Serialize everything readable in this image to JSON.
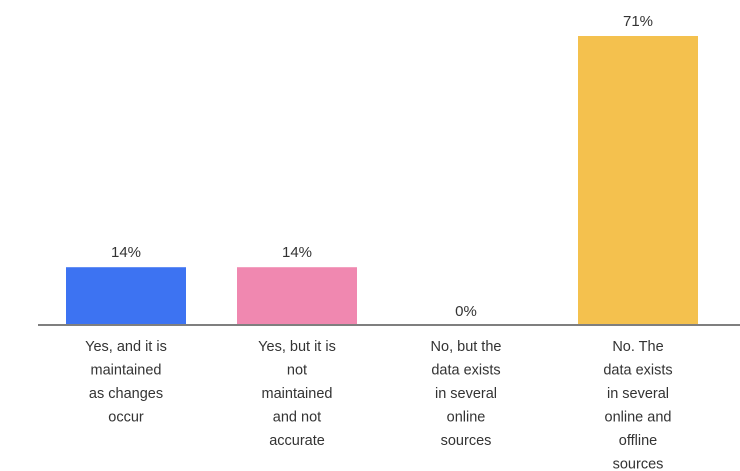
{
  "chart_data": {
    "type": "bar",
    "categories": [
      [
        "Yes, and it is",
        "maintained",
        "as changes",
        "occur"
      ],
      [
        "Yes, but it is",
        "not",
        "maintained",
        "and not",
        "accurate"
      ],
      [
        "No, but the",
        "data exists",
        "in several",
        "online",
        "sources"
      ],
      [
        "No. The",
        "data exists",
        "in several",
        "online and",
        "offline",
        "sources"
      ]
    ],
    "values": [
      14,
      14,
      0,
      71
    ],
    "value_labels": [
      "14%",
      "14%",
      "0%",
      "71%"
    ],
    "colors": [
      "#3d73f2",
      "#f088b0",
      "#ffffff",
      "#f4c14e"
    ],
    "axis_color": "#555555",
    "ylim": [
      0,
      71
    ],
    "grid": false,
    "title": "",
    "xlabel": "",
    "ylabel": ""
  }
}
